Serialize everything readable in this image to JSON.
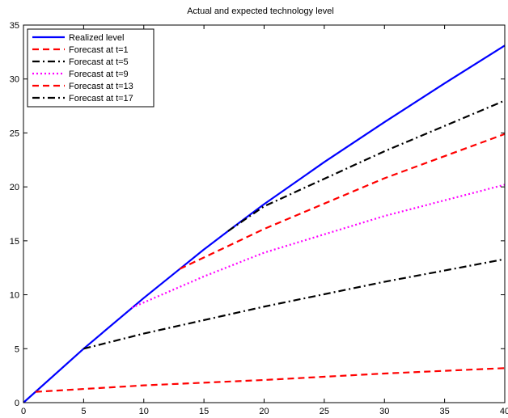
{
  "chart_data": {
    "type": "line",
    "title": "Actual and expected technology level",
    "xlabel": "",
    "ylabel": "",
    "xlim": [
      0,
      40
    ],
    "ylim": [
      0,
      35
    ],
    "xticks": [
      0,
      5,
      10,
      15,
      20,
      25,
      30,
      35,
      40
    ],
    "yticks": [
      0,
      5,
      10,
      15,
      20,
      25,
      30,
      35
    ],
    "grid": false,
    "legend_position": "top-left",
    "series": [
      {
        "name": "Realized level",
        "color": "#0000ff",
        "style": "solid",
        "x": [
          0,
          5,
          10,
          13,
          15,
          17,
          20,
          25,
          30,
          35,
          40
        ],
        "y": [
          0,
          5.0,
          9.7,
          12.4,
          14.2,
          15.9,
          18.4,
          22.3,
          26.0,
          29.6,
          33.1
        ]
      },
      {
        "name": "Forecast at t=1",
        "color": "#ff0000",
        "style": "dashed",
        "x": [
          1,
          10,
          20,
          30,
          40
        ],
        "y": [
          1.0,
          1.6,
          2.1,
          2.7,
          3.2
        ]
      },
      {
        "name": "Forecast at t=5",
        "color": "#000000",
        "style": "dashdot",
        "x": [
          5,
          10,
          20,
          30,
          40
        ],
        "y": [
          5.0,
          6.4,
          8.9,
          11.2,
          13.3
        ]
      },
      {
        "name": "Forecast at t=9",
        "color": "#ff00ff",
        "style": "dotted",
        "x": [
          9,
          15,
          20,
          30,
          40
        ],
        "y": [
          8.8,
          11.7,
          13.9,
          17.3,
          20.2
        ]
      },
      {
        "name": "Forecast at t=13",
        "color": "#ff0000",
        "style": "dashed",
        "x": [
          13,
          20,
          30,
          40
        ],
        "y": [
          12.4,
          16.1,
          20.8,
          24.9
        ]
      },
      {
        "name": "Forecast at t=17",
        "color": "#000000",
        "style": "dashdot",
        "x": [
          17,
          20,
          30,
          40
        ],
        "y": [
          15.9,
          18.2,
          23.3,
          28.0
        ]
      }
    ]
  }
}
